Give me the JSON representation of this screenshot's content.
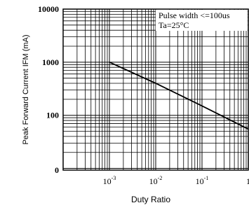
{
  "chart_data": {
    "type": "line",
    "xlabel": "Duty Ratio",
    "ylabel": "Peak Forward Current IFM (mA)",
    "x_scale": "log",
    "y_scale": "log",
    "xlim": [
      0.0001,
      1
    ],
    "x_ticks": [
      {
        "value": 0.001,
        "base": "10",
        "exp": "-3"
      },
      {
        "value": 0.01,
        "base": "10",
        "exp": "-2"
      },
      {
        "value": 0.1,
        "base": "10",
        "exp": "-1"
      },
      {
        "value": 1,
        "base": "1",
        "exp": ""
      }
    ],
    "y_ticks": [
      {
        "value": 10000,
        "label": "10000"
      },
      {
        "value": 1000,
        "label": "1000"
      },
      {
        "value": 100,
        "label": "100"
      },
      {
        "value": 0,
        "label": "0"
      }
    ],
    "grid": true,
    "legend_lines": [
      "Pulse width <=100us",
      "Ta=25°C"
    ],
    "legend_position": "top-right",
    "series": [
      {
        "x": [
          0.001,
          0.01,
          0.1,
          1
        ],
        "y": [
          1000,
          400,
          150,
          55
        ],
        "color": "#000000"
      }
    ]
  }
}
